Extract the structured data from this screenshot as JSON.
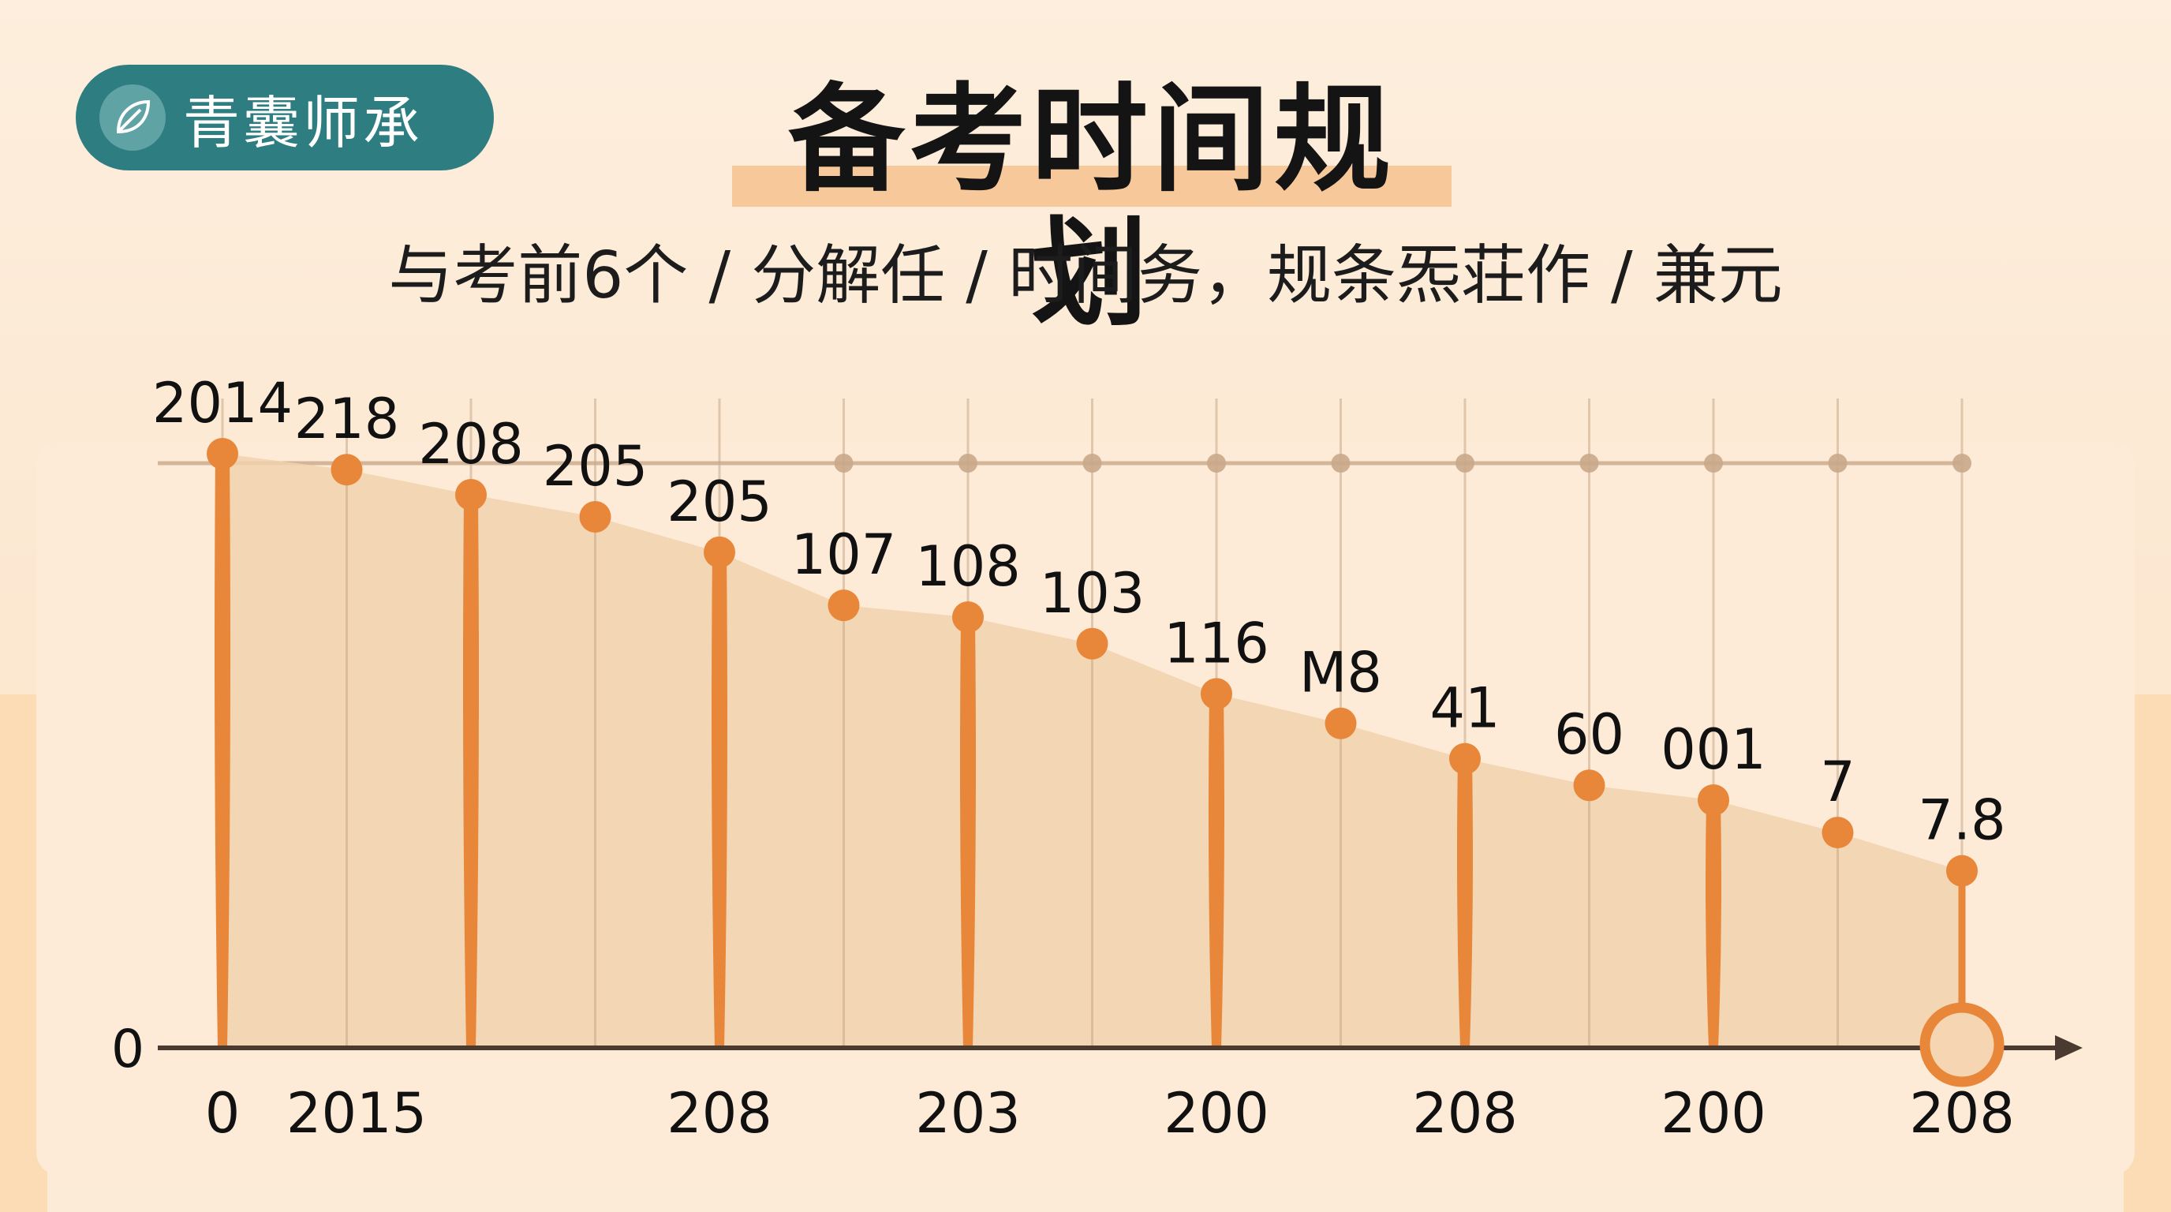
{
  "brand": {
    "name": "青囊师承",
    "icon": "leaf-icon"
  },
  "header": {
    "title": "备考时间规划",
    "subtitle": "与考前6个 / 分解任 / 时间务，规条炁荘作 / 兼元"
  },
  "colors": {
    "accent": "#e8863a",
    "brand": "#2e7d80",
    "area": "#f1d2ad",
    "guide": "#c9a98a",
    "axis": "#4a3a30"
  },
  "chart_data": {
    "type": "area",
    "y_zero_label": "0",
    "x_tick_labels": [
      "0",
      "2015",
      "208",
      "203",
      "200",
      "208",
      "200",
      "208"
    ],
    "points": [
      {
        "label": "2014",
        "value": 2014
      },
      {
        "label": "218",
        "value": 1960
      },
      {
        "label": "208",
        "value": 1875
      },
      {
        "label": "205",
        "value": 1800
      },
      {
        "label": "205",
        "value": 1680
      },
      {
        "label": "107",
        "value": 1500
      },
      {
        "label": "108",
        "value": 1460
      },
      {
        "label": "103",
        "value": 1370
      },
      {
        "label": "116",
        "value": 1200
      },
      {
        "label": "M8",
        "value": 1100
      },
      {
        "label": "41",
        "value": 980
      },
      {
        "label": "60",
        "value": 890
      },
      {
        "label": "001",
        "value": 840
      },
      {
        "label": "7",
        "value": 730
      },
      {
        "label": "7.8",
        "value": 600
      }
    ],
    "highlighted_points": [
      0,
      2,
      4,
      6,
      8,
      10,
      12
    ],
    "grid": true,
    "legend": "none"
  }
}
